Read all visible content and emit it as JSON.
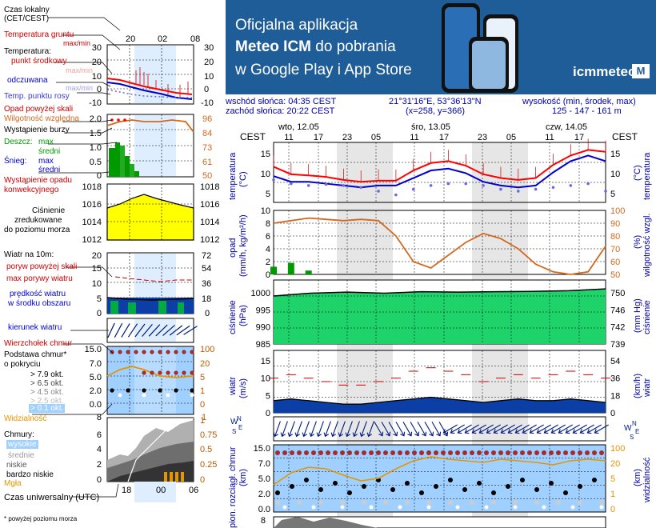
{
  "legend": {
    "time_local": [
      "Czas lokalny",
      "(CET/CEST)"
    ],
    "time_ticks_top": [
      "20",
      "02",
      "08"
    ],
    "temp": {
      "ground": "Temperatura gruntu",
      "ground_sub": "max/min",
      "temperature": "Temperatura:",
      "mid": "punkt środkowy",
      "mid_sub": "max/min",
      "feels": "odczuwana",
      "feels_sub": "max/min",
      "dew": "Temp. punktu rosy",
      "axis": [
        "30",
        "20",
        "10",
        "0",
        "-10"
      ]
    },
    "precip": {
      "above": "Opad powyżej skali",
      "humidity": "Wilgotność względna",
      "storm": "Wystąpienie burzy",
      "rain": "Deszcz:",
      "rain_max": "max",
      "rain_avg": "średni",
      "snow": "Śnieg:",
      "snow_max": "max",
      "snow_avg": "średni",
      "occurrence": [
        "Wystąpienie opadu",
        "konwekcyjnego"
      ],
      "axis_left": [
        "2.0",
        "1.5",
        "1.0",
        "0.5",
        "0"
      ],
      "axis_right": [
        "96",
        "84",
        "73",
        "61",
        "50"
      ]
    },
    "pressure": {
      "label": [
        "Ciśnienie",
        "zredukowane",
        "do poziomu morza"
      ],
      "axis": [
        "1018",
        "1016",
        "1014",
        "1012"
      ]
    },
    "wind": {
      "title": "Wiatr na 10m:",
      "gust_above": "poryw powyżej skali",
      "gust_max": "max porywy wiatru",
      "speed": [
        "prędkość wiatru",
        "w środku obszaru"
      ],
      "axis_left": [
        "20",
        "15",
        "10",
        "5",
        "0"
      ],
      "axis_right": [
        "72",
        "54",
        "36",
        "18",
        "0"
      ],
      "direction": "kierunek wiatru"
    },
    "clouds": {
      "top": "Wierzchołek chmur",
      "base": [
        "Podstawa chmur*",
        "o pokryciu"
      ],
      "okt": [
        "> 7.9 okt.",
        "> 6.5 okt.",
        "> 4.5 okt.",
        "> 2.5 okt.",
        "> 0.1 okt."
      ],
      "axis_left": [
        "15.0",
        "7.0",
        "5.0",
        "2.0",
        "0.0"
      ],
      "axis_right": [
        "100",
        "20",
        "5",
        "1",
        "0"
      ],
      "visibility": "Widzialność",
      "visibility_axis": [
        "8",
        "1"
      ]
    },
    "cloud_types": {
      "title": "Chmury:",
      "high": "wysokie",
      "mid": "średnie",
      "low": "niskie",
      "very_low": "bardzo niskie",
      "fog": "Mgła",
      "axis_left": [
        "6",
        "4",
        "2",
        "0"
      ],
      "axis_right": [
        "1",
        "0.75",
        "0.5",
        "0.25",
        "0"
      ]
    },
    "utc_ticks": [
      "18",
      "00",
      "06"
    ],
    "utc_label": "Czas uniwersalny (UTC)",
    "footnote": "* powyżej poziomu morza"
  },
  "banner": {
    "line1": "Oficjalna aplikacja",
    "line2_bold": "Meteo ICM",
    "line2_rest": " do pobrania",
    "line3": "w Google Play i App Store",
    "logo": "icmmeteo",
    "logo_box": "M"
  },
  "info": {
    "sunrise": "wschód słońca: 04:35 CEST",
    "sunset": "zachód słońca: 20:22 CEST",
    "coords": "21°31'16\"E, 53°36'13\"N",
    "grid": "(x=258, y=366)",
    "height_label": "wysokość (min, środek, max)",
    "height_values": "125 - 147 - 161 m"
  },
  "meteogram": {
    "tz": "CEST",
    "days": [
      "wto, 12.05",
      "śro, 13.05",
      "czw, 14.05"
    ],
    "hour_ticks": [
      "11",
      "17",
      "23",
      "05",
      "11",
      "17",
      "23",
      "05",
      "11",
      "17"
    ],
    "panels": {
      "temperature": {
        "left": "temperatura",
        "left_unit": "(°C)",
        "right": "temperatura",
        "right_unit": "(°C)",
        "axis": [
          "15",
          "10",
          "5"
        ],
        "axis_right": [
          "15",
          "10",
          "5"
        ]
      },
      "precip": {
        "left": "opad",
        "left_unit": "(mm/h, kg/m²/h)",
        "right": "wilgotność wzgl.",
        "right_unit": "(%)",
        "axis": [
          "10",
          "8",
          "6",
          "4",
          "2",
          "0"
        ],
        "axis_right": [
          "100",
          "90",
          "80",
          "70",
          "60",
          "50"
        ]
      },
      "pressure": {
        "left": "ciśnienie",
        "left_unit": "(hPa)",
        "right": "ciśnienie",
        "right_unit": "(mm Hg)",
        "axis": [
          "1000",
          "995",
          "990",
          "985"
        ],
        "axis_right": [
          "750",
          "746",
          "742",
          "739"
        ]
      },
      "wind": {
        "left": "wiatr",
        "left_unit": "(m/s)",
        "right": "wiatr",
        "right_unit": "(km/h)",
        "axis": [
          "15",
          "10",
          "5",
          "0"
        ],
        "axis_right": [
          "54",
          "36",
          "18",
          "0"
        ]
      },
      "wind_dir": {
        "left": "W",
        "left2": "N",
        "left3": "E",
        "left4": "S",
        "right": "W",
        "right2": "N",
        "right3": "E",
        "right4": "S"
      },
      "clouds": {
        "left": "pion. rozciągł. chmur",
        "left_unit": "(km)",
        "right": "widzialność",
        "right_unit": "(km)",
        "axis": [
          "15.0",
          "7.0",
          "5.0",
          "2.0",
          "0.0"
        ],
        "axis_right": [
          "100",
          "20",
          "5",
          "1",
          "0"
        ]
      },
      "cloud_types": {
        "axis": [
          "8"
        ]
      }
    },
    "colors": {
      "temp": "#ff0000",
      "feels": "#0000cc",
      "dew": "#6a6ae0",
      "pressure_fill": "#1fd36b",
      "humidity": "#d2691e",
      "wind_fill": "#0b3fa6",
      "cloud_bg": "#9fd0ff",
      "night": "#d9d9d9"
    }
  },
  "chart_data": [
    {
      "type": "line",
      "title": "temperatura (°C)",
      "x": [
        "wto 11",
        "wto 14",
        "wto 17",
        "wto 20",
        "wto 23",
        "śro 02",
        "śro 05",
        "śro 08",
        "śro 11",
        "śro 14",
        "śro 17",
        "śro 20",
        "śro 23",
        "czw 02",
        "czw 05",
        "czw 08",
        "czw 11",
        "czw 14",
        "czw 17",
        "czw 20"
      ],
      "series": [
        {
          "name": "punkt środkowy",
          "values": [
            11.5,
            9.5,
            9.2,
            8.8,
            8.0,
            7.5,
            7.8,
            7.8,
            10.5,
            12.5,
            13.0,
            11.8,
            9.5,
            8.5,
            8.0,
            8.5,
            12.0,
            14.5,
            16.0,
            15.5
          ]
        },
        {
          "name": "odczuwana",
          "values": [
            9.0,
            7.5,
            7.5,
            7.0,
            6.5,
            6.0,
            6.5,
            6.5,
            8.5,
            10.5,
            11.0,
            9.8,
            7.5,
            6.5,
            6.0,
            6.5,
            10.0,
            13.0,
            14.5,
            13.0
          ]
        },
        {
          "name": "Temp. punktu rosy",
          "values": [
            8.0,
            7.0,
            6.5,
            6.8,
            6.5,
            6.0,
            5.0,
            4.0,
            5.5,
            6.5,
            7.0,
            7.0,
            6.5,
            5.5,
            5.0,
            5.5,
            6.0,
            6.5,
            7.0,
            5.0
          ]
        }
      ],
      "ylim": [
        2,
        18
      ]
    },
    {
      "type": "bar",
      "title": "opad (mm/h, kg/m²/h)",
      "x": [
        "wto 11",
        "wto 14",
        "wto 17",
        "wto 20",
        "wto 23",
        "śro 02",
        "śro 05",
        "śro 08",
        "śro 11",
        "śro 14",
        "śro 17",
        "śro 20",
        "śro 23",
        "czw 02",
        "czw 05",
        "czw 08",
        "czw 11",
        "czw 14",
        "czw 17",
        "czw 20"
      ],
      "series": [
        {
          "name": "opad",
          "values": [
            1.2,
            1.8,
            0.6,
            0,
            0,
            0,
            0,
            0,
            0,
            0,
            0,
            0,
            0,
            0,
            0,
            0,
            0,
            0,
            0,
            0
          ]
        },
        {
          "name": "wilgotność wzgl.",
          "values": [
            90,
            92,
            94,
            93,
            92,
            93,
            92,
            80,
            60,
            55,
            65,
            75,
            82,
            78,
            70,
            58,
            52,
            50,
            52,
            72
          ]
        }
      ],
      "ylim": [
        0,
        10
      ]
    },
    {
      "type": "area",
      "title": "ciśnienie (hPa)",
      "x": [
        "wto 11",
        "wto 17",
        "wto 23",
        "śro 05",
        "śro 11",
        "śro 17",
        "śro 23",
        "czw 05",
        "czw 11",
        "czw 17"
      ],
      "values": [
        998.5,
        999.3,
        999.6,
        999.3,
        999.7,
        999.6,
        999.7,
        999.8,
        1000.0,
        1000.5
      ],
      "ylim": [
        985,
        1003
      ]
    },
    {
      "type": "line",
      "title": "wiatr (m/s)",
      "x": [
        "wto 11",
        "wto 14",
        "wto 17",
        "wto 20",
        "wto 23",
        "śro 02",
        "śro 05",
        "śro 08",
        "śro 11",
        "śro 14",
        "śro 17",
        "śro 20",
        "śro 23",
        "czw 02",
        "czw 05",
        "czw 08",
        "czw 11",
        "czw 14",
        "czw 17",
        "czw 20"
      ],
      "series": [
        {
          "name": "prędkość",
          "values": [
            3.5,
            4.0,
            3.5,
            3.0,
            2.5,
            2.5,
            3.0,
            3.5,
            4.0,
            4.5,
            4.0,
            3.5,
            3.0,
            3.5,
            4.0,
            3.5,
            3.5,
            4.0,
            3.5,
            3.0
          ]
        },
        {
          "name": "porywy",
          "values": [
            10,
            11,
            10,
            9,
            8,
            8,
            9,
            10,
            12,
            13,
            12,
            11,
            9,
            10,
            11,
            10,
            11,
            12,
            11,
            10
          ]
        }
      ],
      "ylim": [
        0,
        18
      ]
    }
  ]
}
